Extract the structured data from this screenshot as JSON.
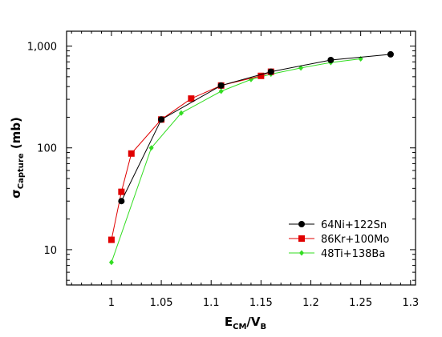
{
  "chart_data": {
    "type": "line",
    "title": "",
    "xlabel": {
      "main": "E",
      "sub1": "CM",
      "sep": "/V",
      "sub2": "B"
    },
    "ylabel": {
      "main": "σ",
      "sub": "Capture",
      "rest": " (mb)"
    },
    "yscale": "log",
    "xlim": [
      0.955,
      1.305
    ],
    "ylim": [
      4.5,
      1400
    ],
    "x_ticks": [
      {
        "value": 1.0,
        "label": "1"
      },
      {
        "value": 1.05,
        "label": "1.05"
      },
      {
        "value": 1.1,
        "label": "1.1"
      },
      {
        "value": 1.15,
        "label": "1.15"
      },
      {
        "value": 1.2,
        "label": "1.2"
      },
      {
        "value": 1.25,
        "label": "1.25"
      },
      {
        "value": 1.3,
        "label": "1.3"
      }
    ],
    "y_ticks": [
      {
        "value": 10,
        "label": "10"
      },
      {
        "value": 100,
        "label": "100"
      },
      {
        "value": 1000,
        "label": "1,000"
      }
    ],
    "grid": false,
    "legend_position": "bottom-right",
    "series": [
      {
        "name": "64Ni+122Sn",
        "color": "#000000",
        "marker": "circle",
        "x": [
          1.01,
          1.05,
          1.11,
          1.16,
          1.22,
          1.28
        ],
        "y": [
          30,
          190,
          410,
          560,
          730,
          830
        ]
      },
      {
        "name": "86Kr+100Mo",
        "color": "#e00000",
        "marker": "square",
        "x": [
          1.0,
          1.01,
          1.02,
          1.05,
          1.08,
          1.11,
          1.15,
          1.16
        ],
        "y": [
          12.5,
          37,
          88,
          190,
          305,
          410,
          510,
          560
        ]
      },
      {
        "name": "48Ti+138Ba",
        "color": "#33dd22",
        "marker": "diamond",
        "x": [
          1.0,
          1.04,
          1.07,
          1.11,
          1.14,
          1.16,
          1.19,
          1.22,
          1.25
        ],
        "y": [
          7.5,
          100,
          220,
          360,
          470,
          530,
          610,
          690,
          750
        ]
      }
    ]
  }
}
